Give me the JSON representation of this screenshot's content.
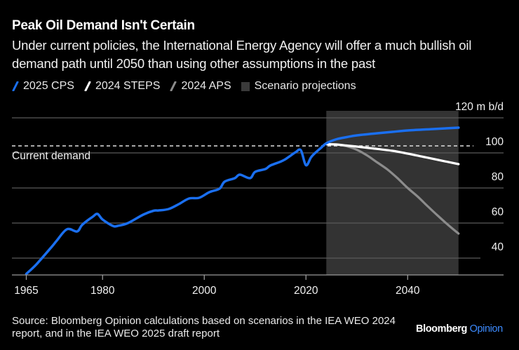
{
  "header": {
    "title": "Peak Oil Demand Isn't Certain",
    "subtitle": "Under current policies, the International Energy Agency will offer a much bullish oil demand path until 2050 than using other assumptions in the past"
  },
  "legend": [
    {
      "label": "2025 CPS",
      "color": "#1a6ff0",
      "kind": "line"
    },
    {
      "label": "2024 STEPS",
      "color": "#ffffff",
      "kind": "line"
    },
    {
      "label": "2024 APS",
      "color": "#8c8c8c",
      "kind": "line"
    },
    {
      "label": "Scenario projections",
      "color": "#333333",
      "kind": "box"
    }
  ],
  "footer": {
    "source": "Source: Bloomberg Opinion calculations based on scenarios in the IEA WEO 2024 report, and in the IEA WEO 2025 draft report",
    "brand_main": "Bloomberg",
    "brand_sub": "Opinion"
  },
  "chart_data": {
    "type": "line",
    "title": "Peak Oil Demand Isn't Certain",
    "xlabel": "",
    "ylabel": "m b/d",
    "unit_label": "120 m b/d",
    "xlim": [
      1963,
      2056
    ],
    "ylim": [
      30,
      124
    ],
    "x_ticks": [
      1965,
      1980,
      2000,
      2020,
      2040
    ],
    "y_ticks": [
      40,
      60,
      80,
      100,
      120
    ],
    "y_tick_labels": [
      "40",
      "60",
      "80",
      "100",
      "120 m b/d"
    ],
    "grid": true,
    "legend_position": "top-left",
    "shaded_region": {
      "label": "Scenario projections",
      "from": 2024,
      "to": 2050,
      "color": "#333333"
    },
    "reference_line": {
      "label": "Current demand",
      "value": 104
    },
    "series": [
      {
        "name": "2025 CPS",
        "color": "#1a6ff0",
        "x": [
          1965,
          1967,
          1970,
          1971,
          1973,
          1975,
          1976,
          1978,
          1979,
          1980,
          1982,
          1983,
          1985,
          1988,
          1990,
          1991,
          1993,
          1995,
          1997,
          1999,
          2001,
          2003,
          2004,
          2006,
          2007,
          2009,
          2010,
          2012,
          2013,
          2015,
          2016,
          2017,
          2018,
          2019,
          2020,
          2021,
          2022,
          2023,
          2024,
          2026,
          2028,
          2030,
          2034,
          2037,
          2040,
          2045,
          2050
        ],
        "y": [
          31,
          36.5,
          46.5,
          50,
          56.5,
          55.2,
          59,
          63.5,
          65.2,
          62,
          58.4,
          58.4,
          60,
          64.8,
          67,
          67.2,
          68,
          70.8,
          74,
          74.4,
          77.6,
          79.6,
          83.6,
          85.6,
          87.6,
          85.6,
          89.2,
          90.8,
          92.8,
          95,
          96.5,
          98.5,
          100.5,
          101.5,
          93,
          97.5,
          100.5,
          103,
          105.5,
          107.8,
          109,
          110,
          111.2,
          112,
          112.8,
          113.6,
          114.4
        ]
      },
      {
        "name": "2024 STEPS",
        "color": "#ffffff",
        "x": [
          2024,
          2026,
          2028,
          2030,
          2033,
          2037,
          2040,
          2043,
          2046,
          2050
        ],
        "y": [
          105,
          104.8,
          104.2,
          103.6,
          102.6,
          101.2,
          99.6,
          97.8,
          96,
          93.6
        ]
      },
      {
        "name": "2024 APS",
        "color": "#8c8c8c",
        "x": [
          2024,
          2026,
          2028,
          2030,
          2032,
          2034,
          2036,
          2038,
          2040,
          2042,
          2044,
          2046,
          2048,
          2050
        ],
        "y": [
          105,
          104.8,
          103.8,
          101.8,
          98.6,
          94.6,
          90.6,
          85.6,
          80,
          75,
          69.4,
          64,
          58.8,
          54
        ]
      }
    ]
  }
}
